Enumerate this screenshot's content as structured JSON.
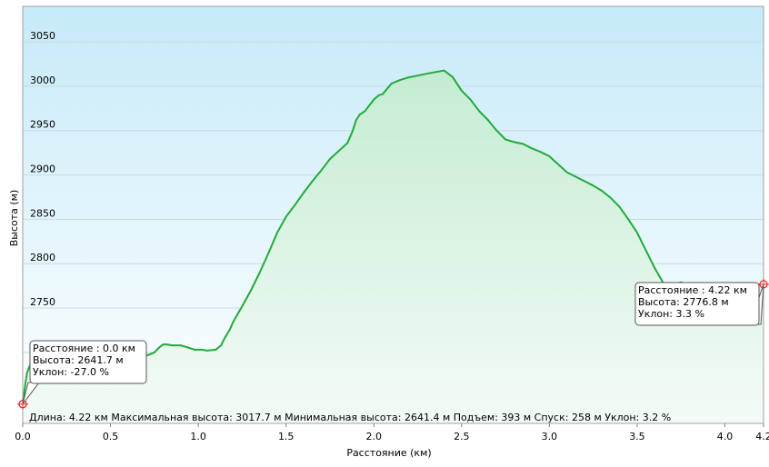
{
  "chart_data": {
    "type": "area",
    "xlabel": "Расстояние  (км)",
    "ylabel": "Высота (м)",
    "xlim": [
      0,
      4.22
    ],
    "ylim": [
      2620,
      3090
    ],
    "x_ticks": [
      {
        "v": 0.0,
        "label": "0.0"
      },
      {
        "v": 0.5,
        "label": "0.5"
      },
      {
        "v": 1.0,
        "label": "1.0"
      },
      {
        "v": 1.5,
        "label": "1.5"
      },
      {
        "v": 2.0,
        "label": "2.0"
      },
      {
        "v": 2.5,
        "label": "2.5"
      },
      {
        "v": 3.0,
        "label": "3.0"
      },
      {
        "v": 3.5,
        "label": "3.5"
      },
      {
        "v": 4.0,
        "label": "4.0"
      },
      {
        "v": 4.22,
        "label": "4.2"
      }
    ],
    "y_ticks": [
      {
        "v": 2700,
        "label": "2700"
      },
      {
        "v": 2750,
        "label": "2750"
      },
      {
        "v": 2800,
        "label": "2800"
      },
      {
        "v": 2850,
        "label": "2850"
      },
      {
        "v": 2900,
        "label": "2900"
      },
      {
        "v": 2950,
        "label": "2950"
      },
      {
        "v": 3000,
        "label": "3000"
      },
      {
        "v": 3050,
        "label": "3050"
      }
    ],
    "grid": true,
    "series": [
      {
        "color": "#22aa3a",
        "x": [
          0.0,
          0.005,
          0.015,
          0.025,
          0.04,
          0.07,
          0.1,
          0.15,
          0.2,
          0.25,
          0.3,
          0.35,
          0.4,
          0.45,
          0.5,
          0.55,
          0.6,
          0.65,
          0.7,
          0.75,
          0.78,
          0.8,
          0.82,
          0.85,
          0.9,
          0.95,
          0.98,
          1.0,
          1.02,
          1.05,
          1.1,
          1.13,
          1.15,
          1.18,
          1.2,
          1.25,
          1.3,
          1.35,
          1.4,
          1.45,
          1.5,
          1.55,
          1.6,
          1.65,
          1.7,
          1.75,
          1.8,
          1.85,
          1.88,
          1.9,
          1.92,
          1.95,
          2.0,
          2.03,
          2.05,
          2.1,
          2.15,
          2.2,
          2.25,
          2.3,
          2.35,
          2.4,
          2.45,
          2.5,
          2.55,
          2.6,
          2.65,
          2.7,
          2.75,
          2.8,
          2.85,
          2.9,
          2.95,
          3.0,
          3.05,
          3.1,
          3.15,
          3.2,
          3.25,
          3.3,
          3.35,
          3.4,
          3.45,
          3.5,
          3.55,
          3.6,
          3.65,
          3.7,
          3.75,
          3.8,
          3.85,
          3.9,
          3.95,
          4.0,
          4.05,
          4.1,
          4.15,
          4.22
        ],
        "y": [
          2641.7,
          2650,
          2665,
          2677,
          2685,
          2690,
          2693,
          2694,
          2695,
          2696,
          2696,
          2697,
          2698,
          2697,
          2696,
          2697,
          2698,
          2697,
          2696,
          2700,
          2706,
          2709,
          2709,
          2708,
          2708,
          2705,
          2703,
          2703,
          2703,
          2702,
          2703,
          2708,
          2716,
          2726,
          2735,
          2752,
          2770,
          2790,
          2812,
          2835,
          2853,
          2866,
          2880,
          2893,
          2905,
          2918,
          2927,
          2936,
          2950,
          2962,
          2968,
          2972,
          2985,
          2990,
          2991,
          3003,
          3007,
          3010,
          3012,
          3014,
          3016,
          3017.7,
          3010,
          2995,
          2985,
          2972,
          2962,
          2950,
          2940,
          2937,
          2935,
          2930,
          2926,
          2921,
          2912,
          2903,
          2898,
          2893,
          2888,
          2882,
          2874,
          2864,
          2850,
          2835,
          2815,
          2795,
          2778,
          2776,
          2779,
          2776,
          2774,
          2773,
          2775,
          2776,
          2775,
          2775,
          2776,
          2776.8
        ]
      }
    ],
    "callouts": [
      {
        "lines": [
          "Расстояние  : 0.0 км",
          "Высота: 2641.7 м",
          "Уклон: -27.0 %"
        ]
      },
      {
        "lines": [
          "Расстояние  : 4.22 км",
          "Высота: 2776.8 м",
          "Уклон: 3.3 %"
        ]
      }
    ],
    "summary": "Длина: 4.22 км    Максимальная высота: 3017.7 м    Минимальная высота: 2641.4 м    Подъем: 393 м    Спуск: 258 м    Уклон: 3.2 %",
    "colors": {
      "line": "#22aa3a",
      "plot_top": "#c8ecf8",
      "plot_bottom": "#ffffff",
      "marker": "#e03030"
    }
  }
}
